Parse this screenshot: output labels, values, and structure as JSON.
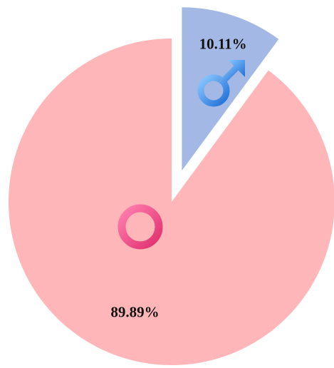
{
  "chart_data": {
    "type": "pie",
    "values": [
      10.11,
      89.89
    ],
    "value_labels": [
      "10.11%",
      "89.89%"
    ],
    "colors": [
      "#a3b8e4",
      "#ffb6b9"
    ]
  }
}
